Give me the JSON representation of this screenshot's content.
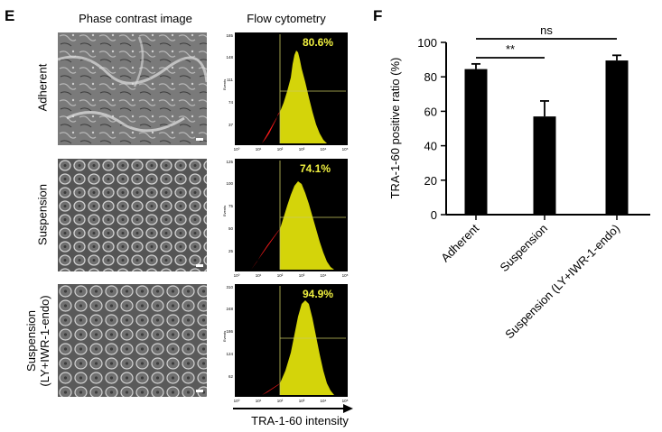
{
  "panel_e": {
    "letter": "E",
    "phase_title": "Phase contrast image",
    "flow_title": "Flow cytometry",
    "axis_label": "TRA-1-60 intensity",
    "rows": [
      {
        "label_lines": [
          "Adherent"
        ],
        "percent": "80.6%",
        "ymax_tick": "185",
        "yticks": [
          "148",
          "111",
          "74",
          "37"
        ]
      },
      {
        "label_lines": [
          "Suspension"
        ],
        "percent": "74.1%",
        "ymax_tick": "125",
        "yticks": [
          "100",
          "75",
          "50",
          "25"
        ]
      },
      {
        "label_lines": [
          "Suspension",
          "(LY+IWR-1-endo)"
        ],
        "percent": "94.9%",
        "ymax_tick": "310",
        "yticks": [
          "248",
          "186",
          "124",
          "62"
        ]
      }
    ],
    "flow_y_title": "Events",
    "flow_x_ticks": [
      "10⁰",
      "10¹",
      "10²",
      "10³",
      "10⁴",
      "10⁵"
    ]
  },
  "chart_data": {
    "type": "bar",
    "panel_letter": "F",
    "categories": [
      "Adherent",
      "Suspension",
      "Suspension (LY+IWR-1-endo)"
    ],
    "values": [
      84.5,
      57,
      89.5
    ],
    "errors": [
      3,
      9,
      3
    ],
    "ylabel": "TRA-1-60 positive ratio (%)",
    "xlabel": "",
    "ylim": [
      0,
      100
    ],
    "yticks": [
      0,
      20,
      40,
      60,
      80,
      100
    ],
    "bar_color": "#000000",
    "annotations": [
      {
        "text": "**",
        "from": 0,
        "to": 1
      },
      {
        "text": "ns",
        "from": 0,
        "to": 2
      }
    ]
  }
}
